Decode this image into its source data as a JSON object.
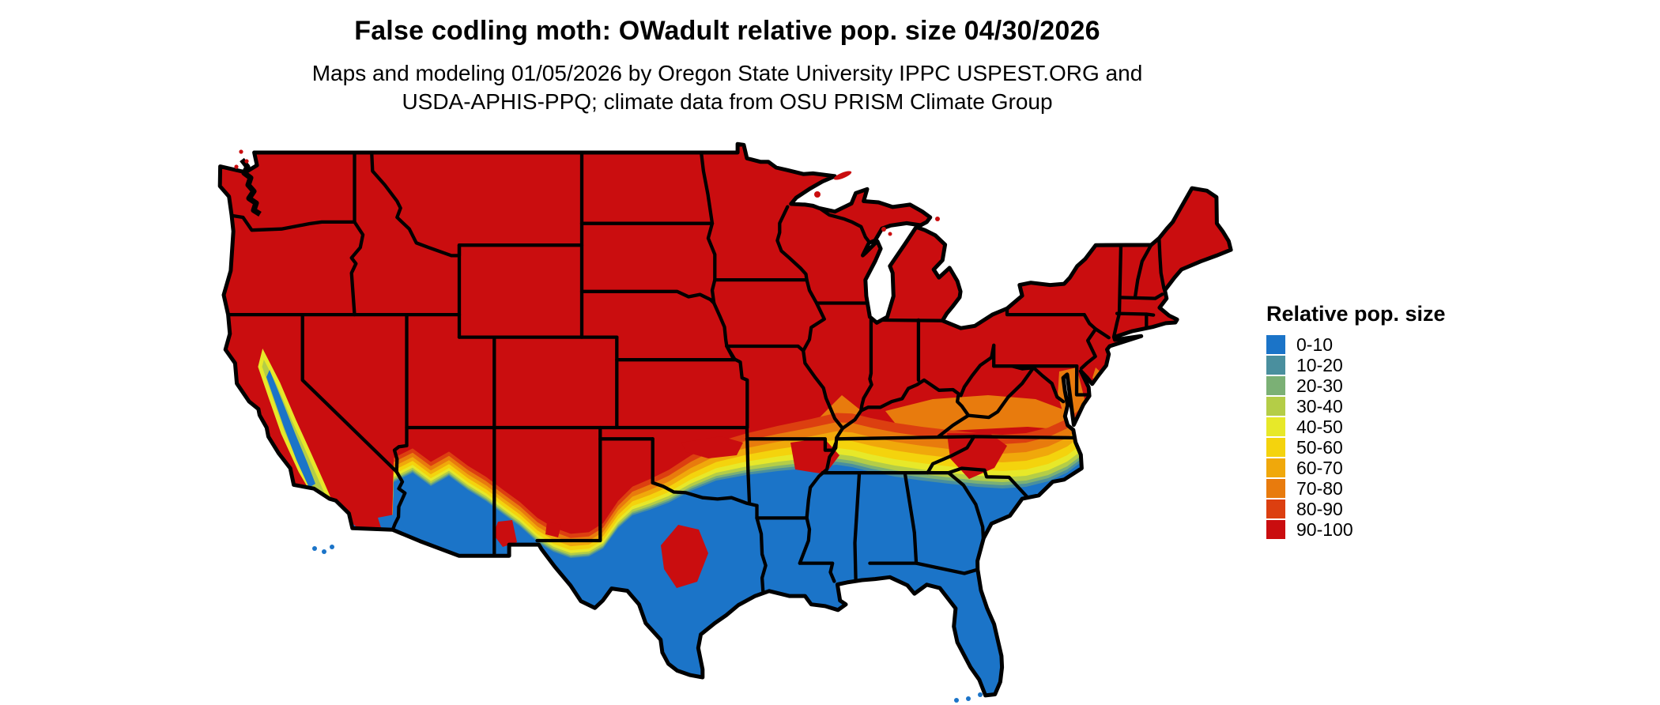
{
  "title": "False codling moth: OWadult relative pop. size 04/30/2026",
  "subtitle_line1": "Maps and modeling 01/05/2026 by Oregon State University IPPC USPEST.ORG and",
  "subtitle_line2": "USDA-APHIS-PPQ; climate data from OSU PRISM Climate Group",
  "legend": {
    "title": "Relative pop. size",
    "items": [
      {
        "label": "0-10",
        "color": "#1b74c8"
      },
      {
        "label": "10-20",
        "color": "#4a8f9e"
      },
      {
        "label": "20-30",
        "color": "#7bb075"
      },
      {
        "label": "30-40",
        "color": "#b4cd47"
      },
      {
        "label": "40-50",
        "color": "#e7e829"
      },
      {
        "label": "50-60",
        "color": "#f4d30d"
      },
      {
        "label": "60-70",
        "color": "#f0a80b"
      },
      {
        "label": "70-80",
        "color": "#e87b0d"
      },
      {
        "label": "80-90",
        "color": "#dc3f10"
      },
      {
        "label": "90-100",
        "color": "#ca0d0f"
      }
    ]
  },
  "map": {
    "ocean_color": "#ffffff",
    "state_border_color": "#000000",
    "region": "Contiguous United States"
  }
}
